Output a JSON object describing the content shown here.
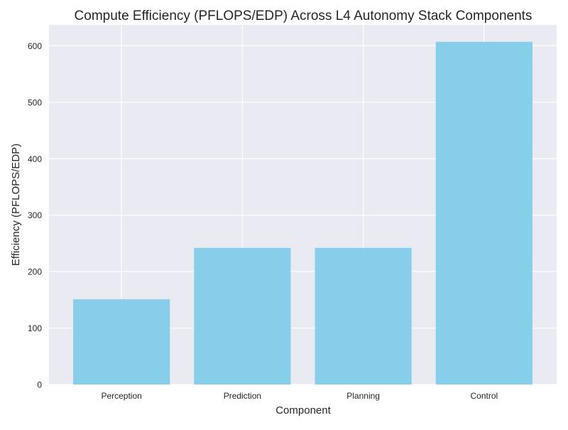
{
  "chart_data": {
    "type": "bar",
    "title": "Compute Efficiency (PFLOPS/EDP) Across L4 Autonomy Stack Components",
    "xlabel": "Component",
    "ylabel": "Efficiency (PFLOPS/EDP)",
    "categories": [
      "Perception",
      "Prediction",
      "Planning",
      "Control"
    ],
    "values": [
      151,
      242,
      242,
      607
    ],
    "ylim": [
      0,
      637
    ],
    "yticks": [
      0,
      100,
      200,
      300,
      400,
      500,
      600
    ],
    "grid": true,
    "bar_color": "#87CEEB",
    "background_color": "#EAEAF2",
    "grid_color": "#FFFFFF"
  }
}
